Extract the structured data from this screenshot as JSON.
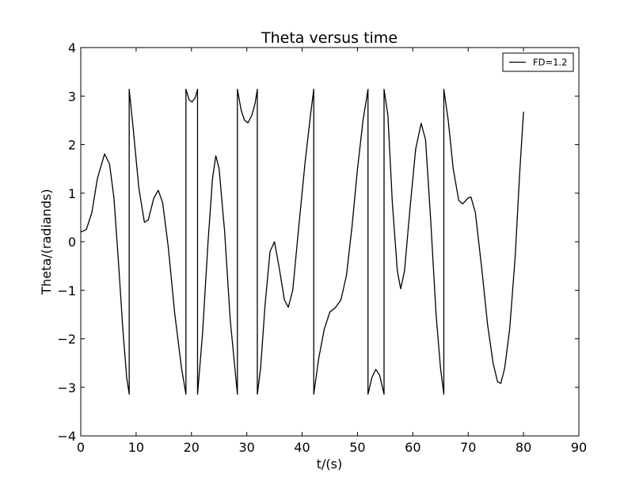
{
  "chart_data": {
    "type": "line",
    "title": "Theta versus time",
    "xlabel": "t/(s)",
    "ylabel": "Theta/(radiands)",
    "xlim": [
      0,
      90
    ],
    "ylim": [
      -4,
      4
    ],
    "xticks": [
      0,
      10,
      20,
      30,
      40,
      50,
      60,
      70,
      80,
      90
    ],
    "yticks": [
      4,
      3,
      2,
      1,
      0,
      -1,
      -2,
      -3,
      -4
    ],
    "xtick_labels": [
      "0",
      "10",
      "20",
      "30",
      "40",
      "50",
      "60",
      "70",
      "80",
      "90"
    ],
    "ytick_labels": [
      "4",
      "3",
      "2",
      "1",
      "0",
      "−1",
      "−2",
      "−3",
      "−4"
    ],
    "grid": false,
    "legend_position": "top-right",
    "series": [
      {
        "name": "FD=1.2",
        "color": "#000000",
        "points": [
          [
            0.0,
            0.2
          ],
          [
            1.0,
            0.25
          ],
          [
            2.0,
            0.6
          ],
          [
            3.0,
            1.3
          ],
          [
            4.3,
            1.81
          ],
          [
            5.2,
            1.6
          ],
          [
            6.0,
            0.9
          ],
          [
            6.8,
            -0.4
          ],
          [
            7.6,
            -1.8
          ],
          [
            8.3,
            -2.8
          ],
          [
            8.75,
            -3.14
          ],
          [
            8.75,
            3.14
          ],
          [
            9.5,
            2.3
          ],
          [
            10.5,
            1.1
          ],
          [
            11.5,
            0.4
          ],
          [
            12.2,
            0.45
          ],
          [
            13.2,
            0.9
          ],
          [
            14.0,
            1.06
          ],
          [
            14.8,
            0.8
          ],
          [
            15.8,
            -0.1
          ],
          [
            17.0,
            -1.5
          ],
          [
            18.2,
            -2.6
          ],
          [
            19.0,
            -3.14
          ],
          [
            19.0,
            3.14
          ],
          [
            19.6,
            2.92
          ],
          [
            20.1,
            2.88
          ],
          [
            20.7,
            2.97
          ],
          [
            21.1,
            3.14
          ],
          [
            21.1,
            -3.14
          ],
          [
            22.0,
            -1.9
          ],
          [
            23.0,
            0.0
          ],
          [
            23.8,
            1.3
          ],
          [
            24.4,
            1.77
          ],
          [
            25.0,
            1.5
          ],
          [
            26.0,
            0.2
          ],
          [
            27.0,
            -1.6
          ],
          [
            28.3,
            -3.14
          ],
          [
            28.3,
            3.14
          ],
          [
            29.0,
            2.7
          ],
          [
            29.6,
            2.5
          ],
          [
            30.2,
            2.45
          ],
          [
            30.9,
            2.6
          ],
          [
            31.5,
            2.85
          ],
          [
            31.9,
            3.14
          ],
          [
            31.9,
            -3.14
          ],
          [
            32.5,
            -2.6
          ],
          [
            33.3,
            -1.3
          ],
          [
            34.2,
            -0.2
          ],
          [
            35.0,
            0.0
          ],
          [
            35.8,
            -0.5
          ],
          [
            36.8,
            -1.2
          ],
          [
            37.5,
            -1.35
          ],
          [
            38.3,
            -1.0
          ],
          [
            39.3,
            0.2
          ],
          [
            40.5,
            1.6
          ],
          [
            41.5,
            2.6
          ],
          [
            42.1,
            3.14
          ],
          [
            42.1,
            -3.14
          ],
          [
            43.0,
            -2.4
          ],
          [
            44.0,
            -1.8
          ],
          [
            45.0,
            -1.45
          ],
          [
            46.0,
            -1.36
          ],
          [
            47.0,
            -1.2
          ],
          [
            48.0,
            -0.7
          ],
          [
            49.0,
            0.3
          ],
          [
            50.0,
            1.5
          ],
          [
            51.0,
            2.5
          ],
          [
            51.9,
            3.14
          ],
          [
            51.9,
            -3.14
          ],
          [
            52.6,
            -2.8
          ],
          [
            53.3,
            -2.63
          ],
          [
            54.0,
            -2.75
          ],
          [
            54.8,
            -3.14
          ],
          [
            54.8,
            3.14
          ],
          [
            55.5,
            2.6
          ],
          [
            56.3,
            0.8
          ],
          [
            57.2,
            -0.6
          ],
          [
            57.8,
            -0.97
          ],
          [
            58.5,
            -0.6
          ],
          [
            59.5,
            0.7
          ],
          [
            60.5,
            1.9
          ],
          [
            61.5,
            2.44
          ],
          [
            62.3,
            2.1
          ],
          [
            63.2,
            0.5
          ],
          [
            64.2,
            -1.5
          ],
          [
            65.0,
            -2.6
          ],
          [
            65.6,
            -3.14
          ],
          [
            65.6,
            3.14
          ],
          [
            66.4,
            2.5
          ],
          [
            67.3,
            1.5
          ],
          [
            68.3,
            0.85
          ],
          [
            69.0,
            0.78
          ],
          [
            70.0,
            0.9
          ],
          [
            70.5,
            0.92
          ],
          [
            71.3,
            0.6
          ],
          [
            72.5,
            -0.6
          ],
          [
            73.5,
            -1.7
          ],
          [
            74.5,
            -2.5
          ],
          [
            75.3,
            -2.88
          ],
          [
            75.9,
            -2.92
          ],
          [
            76.6,
            -2.6
          ],
          [
            77.5,
            -1.8
          ],
          [
            78.5,
            -0.3
          ],
          [
            79.3,
            1.4
          ],
          [
            80.0,
            2.68
          ]
        ]
      }
    ]
  }
}
